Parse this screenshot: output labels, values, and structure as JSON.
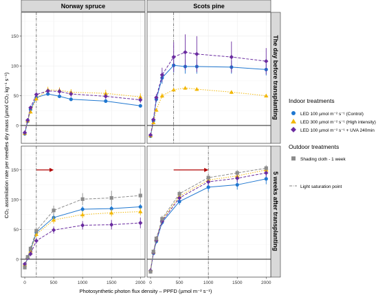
{
  "chart_data": {
    "type": "line",
    "ylabel": "CO₂ assimilation rate per needles dry mass (µmol CO₂ kg⁻¹ s⁻¹)",
    "xlabel": "Photosynthetic photon flux density – PPFD (µmol m⁻² s⁻¹)",
    "xlim": [
      -60,
      2080
    ],
    "ylim": [
      -30,
      190
    ],
    "x_ticks": [
      0,
      500,
      1000,
      1500,
      2000
    ],
    "y_ticks": [
      0,
      50,
      100,
      150
    ],
    "grid": true,
    "columns": [
      "Norway spruce",
      "Scots pine"
    ],
    "rows": [
      "The day before transplanting",
      "5 weeks after transplanting"
    ],
    "colors": {
      "control": "#1f77d0",
      "high": "#f2b705",
      "uva": "#6a2ca0",
      "shade": "#8c8c8c",
      "arrow": "#b00000"
    },
    "legend": {
      "position": "right",
      "indoor_title": "Indoor treatments",
      "indoor_items": [
        {
          "key": "control",
          "label": "LED 100 µmol m⁻² s⁻¹ (Control)"
        },
        {
          "key": "high",
          "label": "LED 300 µmol m⁻² s⁻¹ (High intensity)"
        },
        {
          "key": "uva",
          "label": "LED 100 µmol m⁻² s⁻¹ + UVA 240min"
        }
      ],
      "outdoor_title": "Outdoor treatments",
      "outdoor_items": [
        {
          "key": "shade",
          "label": "Shading cloth - 1 week"
        }
      ],
      "saturation_label": "Light saturation point"
    },
    "panels": [
      {
        "col": 0,
        "row": 0,
        "saturation_x": 200,
        "arrow": null,
        "series": [
          {
            "key": "control",
            "x": [
              0,
              50,
              100,
              200,
              400,
              600,
              800,
              1400,
              2000
            ],
            "y": [
              -14,
              7,
              27,
              47,
              53,
              49,
              44,
              41,
              33
            ],
            "err": [
              2,
              2,
              3,
              3,
              3,
              3,
              3,
              3,
              3
            ]
          },
          {
            "key": "high",
            "x": [
              0,
              50,
              100,
              200,
              400,
              600,
              800,
              1400,
              2000
            ],
            "y": [
              -13,
              8,
              23,
              45,
              60,
              59,
              56,
              54,
              48
            ],
            "err": [
              2,
              2,
              3,
              4,
              5,
              5,
              5,
              6,
              6
            ]
          },
          {
            "key": "uva",
            "x": [
              0,
              50,
              100,
              200,
              400,
              600,
              800,
              1400,
              2000
            ],
            "y": [
              -12,
              9,
              30,
              52,
              58,
              57,
              53,
              49,
              43
            ],
            "err": [
              2,
              2,
              3,
              4,
              4,
              5,
              5,
              5,
              5
            ]
          }
        ]
      },
      {
        "col": 1,
        "row": 0,
        "saturation_x": 400,
        "arrow": null,
        "series": [
          {
            "key": "control",
            "x": [
              0,
              50,
              100,
              200,
              400,
              600,
              800,
              1400,
              2000
            ],
            "y": [
              -18,
              8,
              44,
              80,
              101,
              99,
              99,
              98,
              94
            ],
            "err": [
              2,
              3,
              5,
              10,
              12,
              12,
              12,
              11,
              10
            ]
          },
          {
            "key": "high",
            "x": [
              0,
              50,
              100,
              200,
              400,
              600,
              800,
              1400,
              2000
            ],
            "y": [
              -17,
              5,
              26,
              50,
              60,
              63,
              61,
              56,
              50
            ],
            "err": [
              2,
              2,
              3,
              4,
              3,
              3,
              3,
              3,
              3
            ]
          },
          {
            "key": "uva",
            "x": [
              0,
              50,
              100,
              200,
              400,
              600,
              800,
              1400,
              2000
            ],
            "y": [
              -16,
              10,
              47,
              85,
              115,
              123,
              120,
              115,
              108
            ],
            "err": [
              2,
              3,
              6,
              12,
              25,
              30,
              30,
              26,
              22
            ]
          }
        ]
      },
      {
        "col": 0,
        "row": 1,
        "saturation_x": 200,
        "arrow": [
          200,
          500
        ],
        "series": [
          {
            "key": "control",
            "x": [
              0,
              50,
              100,
              200,
              500,
              1000,
              1500,
              2000
            ],
            "y": [
              -11,
              2,
              15,
              45,
              70,
              84,
              85,
              88
            ],
            "err": [
              3,
              3,
              4,
              5,
              6,
              5,
              5,
              5
            ]
          },
          {
            "key": "high",
            "x": [
              0,
              50,
              100,
              200,
              500,
              1000,
              1500,
              2000
            ],
            "y": [
              -9,
              4,
              14,
              42,
              66,
              75,
              78,
              80
            ],
            "err": [
              3,
              3,
              4,
              5,
              6,
              6,
              6,
              6
            ]
          },
          {
            "key": "uva",
            "x": [
              0,
              50,
              100,
              200,
              500,
              1000,
              1500,
              2000
            ],
            "y": [
              -8,
              2,
              9,
              31,
              49,
              57,
              58,
              61
            ],
            "err": [
              3,
              3,
              4,
              5,
              6,
              7,
              8,
              9
            ]
          },
          {
            "key": "shade",
            "x": [
              0,
              50,
              100,
              200,
              500,
              1000,
              1500,
              2000
            ],
            "y": [
              -14,
              4,
              18,
              48,
              82,
              101,
              103,
              107
            ],
            "err": [
              3,
              3,
              4,
              5,
              8,
              10,
              12,
              12
            ]
          }
        ]
      },
      {
        "col": 1,
        "row": 1,
        "saturation_x": 1000,
        "arrow": [
          400,
          1000
        ],
        "series": [
          {
            "key": "control",
            "x": [
              0,
              50,
              100,
              200,
              500,
              1000,
              1500,
              2000
            ],
            "y": [
              -20,
              10,
              30,
              62,
              97,
              121,
              125,
              135
            ],
            "err": [
              3,
              3,
              4,
              5,
              6,
              7,
              8,
              9
            ]
          },
          {
            "key": "high",
            "x": [
              0,
              50,
              100,
              200,
              500,
              1000,
              1500,
              2000
            ],
            "y": [
              -18,
              12,
              33,
              66,
              106,
              133,
              140,
              150
            ],
            "err": [
              3,
              3,
              4,
              5,
              5,
              5,
              5,
              5
            ]
          },
          {
            "key": "uva",
            "x": [
              0,
              50,
              100,
              200,
              500,
              1000,
              1500,
              2000
            ],
            "y": [
              -19,
              11,
              32,
              64,
              103,
              130,
              136,
              145
            ],
            "err": [
              3,
              3,
              4,
              5,
              6,
              6,
              7,
              7
            ]
          },
          {
            "key": "shade",
            "x": [
              0,
              50,
              100,
              200,
              500,
              1000,
              1500,
              2000
            ],
            "y": [
              -21,
              13,
              35,
              68,
              110,
              137,
              145,
              153
            ],
            "err": [
              3,
              3,
              4,
              5,
              5,
              5,
              5,
              5
            ]
          }
        ]
      }
    ]
  }
}
